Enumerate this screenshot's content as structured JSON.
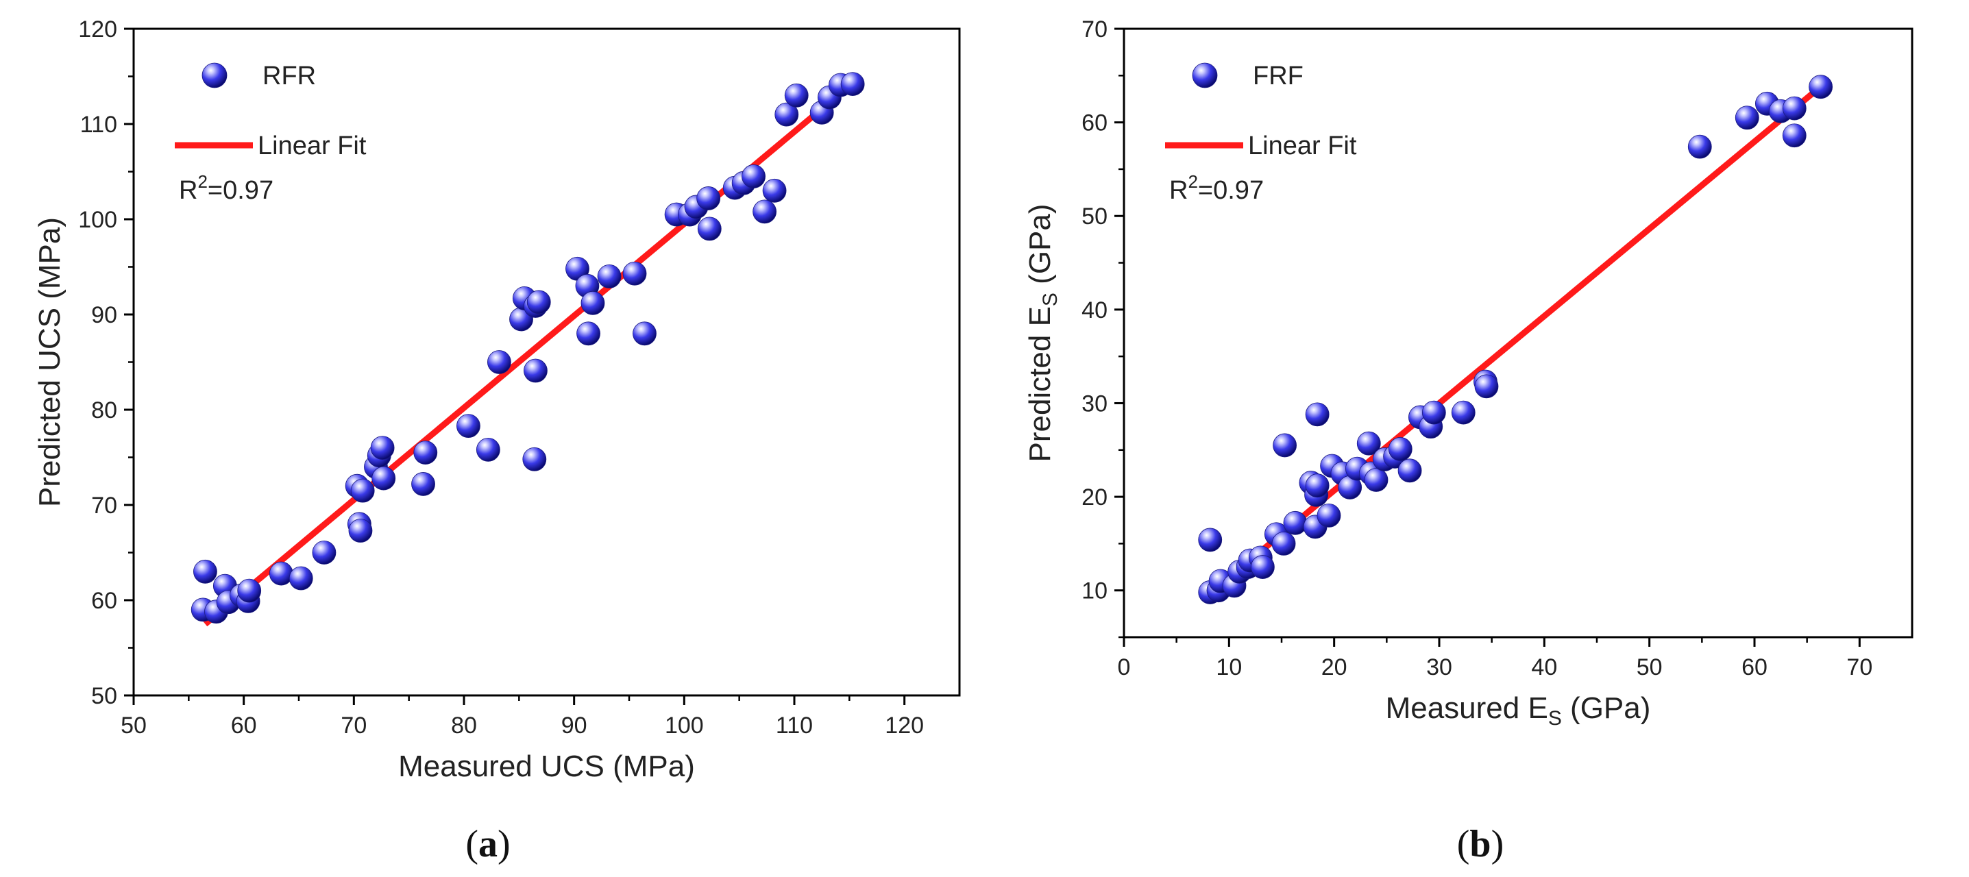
{
  "chart_data": [
    {
      "type": "scatter",
      "panel_label": "a",
      "xlabel": "Measured UCS (MPa)",
      "ylabel": "Predicted UCS (MPa)",
      "xlim": [
        50,
        125
      ],
      "ylim": [
        50,
        120
      ],
      "xticks": [
        50,
        60,
        70,
        80,
        90,
        100,
        110,
        120
      ],
      "yticks": [
        50,
        60,
        70,
        80,
        90,
        100,
        110,
        120
      ],
      "legend": {
        "placement": "top-left",
        "scatter_label": "RFR",
        "line_label": "Linear Fit"
      },
      "annotation": {
        "prefix": "R",
        "sup": "2",
        "value": "=0.97"
      },
      "fit_line": {
        "x": [
          56.5,
          115.5
        ],
        "y": [
          57.5,
          114.5
        ]
      },
      "series": [
        {
          "name": "RFR",
          "points": [
            [
              56.3,
              59.0
            ],
            [
              56.5,
              63.0
            ],
            [
              57.5,
              58.8
            ],
            [
              58.3,
              61.5
            ],
            [
              58.6,
              59.8
            ],
            [
              59.8,
              60.5
            ],
            [
              60.4,
              59.9
            ],
            [
              60.5,
              61.0
            ],
            [
              63.4,
              62.8
            ],
            [
              65.2,
              62.3
            ],
            [
              67.3,
              65.0
            ],
            [
              70.3,
              72.0
            ],
            [
              70.5,
              68.0
            ],
            [
              70.6,
              67.3
            ],
            [
              70.8,
              71.5
            ],
            [
              72.0,
              74.0
            ],
            [
              72.3,
              75.2
            ],
            [
              72.6,
              76.0
            ],
            [
              72.7,
              72.8
            ],
            [
              76.3,
              72.2
            ],
            [
              76.5,
              75.5
            ],
            [
              80.4,
              78.3
            ],
            [
              82.2,
              75.8
            ],
            [
              83.2,
              85.0
            ],
            [
              86.4,
              74.8
            ],
            [
              86.5,
              84.1
            ],
            [
              85.2,
              89.5
            ],
            [
              85.5,
              91.7
            ],
            [
              86.5,
              90.9
            ],
            [
              86.8,
              91.3
            ],
            [
              90.3,
              94.8
            ],
            [
              91.2,
              93.0
            ],
            [
              91.3,
              88.0
            ],
            [
              91.7,
              91.2
            ],
            [
              93.2,
              94.0
            ],
            [
              95.5,
              94.3
            ],
            [
              96.4,
              88.0
            ],
            [
              99.3,
              100.5
            ],
            [
              100.5,
              100.5
            ],
            [
              101.1,
              101.3
            ],
            [
              102.2,
              102.2
            ],
            [
              102.3,
              99.0
            ],
            [
              104.6,
              103.3
            ],
            [
              105.4,
              103.8
            ],
            [
              106.3,
              104.5
            ],
            [
              107.3,
              100.8
            ],
            [
              108.2,
              103.0
            ],
            [
              109.3,
              111.0
            ],
            [
              110.2,
              113.0
            ],
            [
              112.5,
              111.2
            ],
            [
              113.2,
              112.8
            ],
            [
              114.2,
              114.1
            ],
            [
              115.3,
              114.2
            ]
          ]
        }
      ]
    },
    {
      "type": "scatter",
      "panel_label": "b",
      "xlabel": {
        "prefix": "Measured E",
        "sub": "S",
        "suffix": " (GPa)"
      },
      "ylabel": {
        "prefix": "Predicted E",
        "sub": "S",
        "suffix": " (GPa)"
      },
      "xlim": [
        0,
        75
      ],
      "ylim": [
        5,
        70
      ],
      "xticks": [
        0,
        10,
        20,
        30,
        40,
        50,
        60,
        70
      ],
      "yticks": [
        10,
        20,
        30,
        40,
        50,
        60,
        70
      ],
      "legend": {
        "placement": "top-left",
        "scatter_label": "FRF",
        "line_label": "Linear Fit"
      },
      "annotation": {
        "prefix": "R",
        "sup": "2",
        "value": "=0.97"
      },
      "fit_line": {
        "x": [
          8.0,
          66.5
        ],
        "y": [
          9.5,
          64.0
        ]
      },
      "series": [
        {
          "name": "FRF",
          "points": [
            [
              8.2,
              15.4
            ],
            [
              8.2,
              9.8
            ],
            [
              9.0,
              10.0
            ],
            [
              9.2,
              11.0
            ],
            [
              10.5,
              10.5
            ],
            [
              11.0,
              12.0
            ],
            [
              11.8,
              12.5
            ],
            [
              12.0,
              13.2
            ],
            [
              13.0,
              13.5
            ],
            [
              13.2,
              12.5
            ],
            [
              14.5,
              16.0
            ],
            [
              15.2,
              15.0
            ],
            [
              15.3,
              25.5
            ],
            [
              16.3,
              17.2
            ],
            [
              17.8,
              21.5
            ],
            [
              18.2,
              16.8
            ],
            [
              18.3,
              20.2
            ],
            [
              18.4,
              21.2
            ],
            [
              18.4,
              28.8
            ],
            [
              19.5,
              18.0
            ],
            [
              19.8,
              23.3
            ],
            [
              20.8,
              22.5
            ],
            [
              21.5,
              21.0
            ],
            [
              22.2,
              23.0
            ],
            [
              23.3,
              25.7
            ],
            [
              23.5,
              22.5
            ],
            [
              24.0,
              21.8
            ],
            [
              24.8,
              24.0
            ],
            [
              25.8,
              24.3
            ],
            [
              26.3,
              25.1
            ],
            [
              27.2,
              22.8
            ],
            [
              28.2,
              28.5
            ],
            [
              29.2,
              27.5
            ],
            [
              29.5,
              29.0
            ],
            [
              32.3,
              29.0
            ],
            [
              34.4,
              32.3
            ],
            [
              34.5,
              31.8
            ],
            [
              54.8,
              57.4
            ],
            [
              59.3,
              60.5
            ],
            [
              61.2,
              62.0
            ],
            [
              62.5,
              61.2
            ],
            [
              63.8,
              61.5
            ],
            [
              63.8,
              58.6
            ],
            [
              66.3,
              63.8
            ]
          ]
        }
      ]
    }
  ]
}
